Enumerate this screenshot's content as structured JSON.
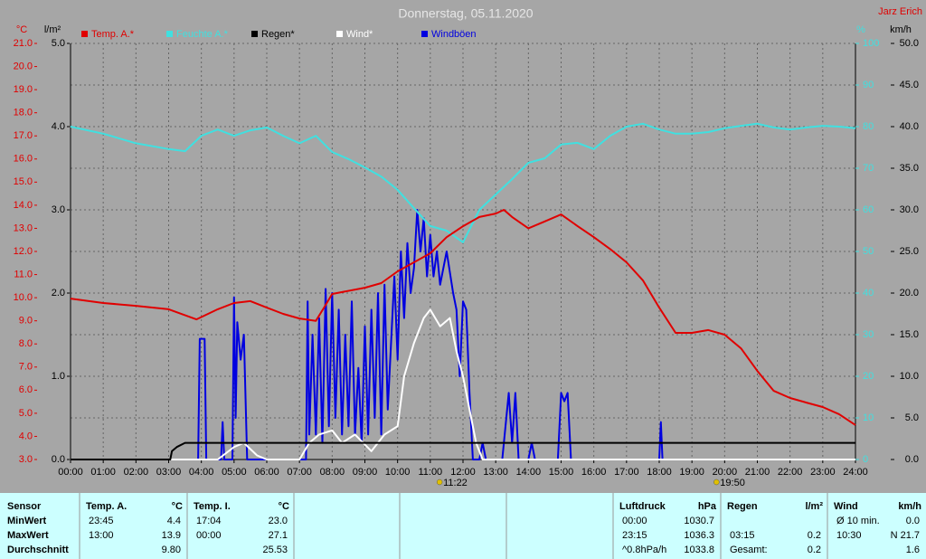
{
  "chart_data": {
    "type": "line",
    "title": "Donnerstag, 05.11.2020",
    "author": "Jarz Erich",
    "ylabel": "°C",
    "y2label": "l/m²",
    "y3label": "%",
    "y4label": "km/h",
    "xlim": [
      0,
      24
    ],
    "xticks": [
      {
        "value": 0,
        "label": "00:00"
      },
      {
        "value": 1,
        "label": "01:00"
      },
      {
        "value": 2,
        "label": "02:00"
      },
      {
        "value": 3,
        "label": "03:00"
      },
      {
        "value": 4,
        "label": "04:00"
      },
      {
        "value": 5,
        "label": "05:00"
      },
      {
        "value": 6,
        "label": "06:00"
      },
      {
        "value": 7,
        "label": "07:00"
      },
      {
        "value": 8,
        "label": "08:00"
      },
      {
        "value": 9,
        "label": "09:00"
      },
      {
        "value": 10,
        "label": "10:00"
      },
      {
        "value": 11,
        "label": "11:00"
      },
      {
        "value": 12,
        "label": "12:00"
      },
      {
        "value": 13,
        "label": "13:00"
      },
      {
        "value": 14,
        "label": "14:00"
      },
      {
        "value": 15,
        "label": "15:00"
      },
      {
        "value": 16,
        "label": "16:00"
      },
      {
        "value": 17,
        "label": "17:00"
      },
      {
        "value": 18,
        "label": "18:00"
      },
      {
        "value": 19,
        "label": "19:00"
      },
      {
        "value": 20,
        "label": "20:00"
      },
      {
        "value": 21,
        "label": "21:00"
      },
      {
        "value": 22,
        "label": "22:00"
      },
      {
        "value": 23,
        "label": "23:00"
      },
      {
        "value": 24,
        "label": "24:00"
      }
    ],
    "ylim": [
      3,
      21
    ],
    "yticks": [
      {
        "value": 3,
        "label": "3.0"
      },
      {
        "value": 4,
        "label": "4.0"
      },
      {
        "value": 5,
        "label": "5.0"
      },
      {
        "value": 6,
        "label": "6.0"
      },
      {
        "value": 7,
        "label": "7.0"
      },
      {
        "value": 8,
        "label": "8.0"
      },
      {
        "value": 9,
        "label": "9.0"
      },
      {
        "value": 10,
        "label": "10.0"
      },
      {
        "value": 11,
        "label": "11.0"
      },
      {
        "value": 12,
        "label": "12.0"
      },
      {
        "value": 13,
        "label": "13.0"
      },
      {
        "value": 14,
        "label": "14.0"
      },
      {
        "value": 15,
        "label": "15.0"
      },
      {
        "value": 16,
        "label": "16.0"
      },
      {
        "value": 17,
        "label": "17.0"
      },
      {
        "value": 18,
        "label": "18.0"
      },
      {
        "value": 19,
        "label": "19.0"
      },
      {
        "value": 20,
        "label": "20.0"
      },
      {
        "value": 21,
        "label": "21.0"
      }
    ],
    "y2lim": [
      0,
      5
    ],
    "y2ticks": [
      {
        "value": 0,
        "label": "0.0"
      },
      {
        "value": 1,
        "label": "1.0"
      },
      {
        "value": 2,
        "label": "2.0"
      },
      {
        "value": 3,
        "label": "3.0"
      },
      {
        "value": 4,
        "label": "4.0"
      },
      {
        "value": 5,
        "label": "5.0"
      }
    ],
    "y3lim": [
      0,
      100
    ],
    "y3ticks": [
      0,
      10,
      20,
      30,
      40,
      50,
      60,
      70,
      80,
      90,
      100
    ],
    "y4lim": [
      0,
      50
    ],
    "y4ticks": [
      {
        "value": 0,
        "label": "0.0"
      },
      {
        "value": 5,
        "label": "5.0"
      },
      {
        "value": 10,
        "label": "10.0"
      },
      {
        "value": 15,
        "label": "15.0"
      },
      {
        "value": 20,
        "label": "20.0"
      },
      {
        "value": 25,
        "label": "25.0"
      },
      {
        "value": 30,
        "label": "30.0"
      },
      {
        "value": 35,
        "label": "35.0"
      },
      {
        "value": 40,
        "label": "40.0"
      },
      {
        "value": 45,
        "label": "45.0"
      },
      {
        "value": 50,
        "label": "50.0"
      }
    ],
    "grid": true,
    "series": [
      {
        "name": "Temp. A.*",
        "color": "#e00000",
        "axis": "y",
        "x": [
          0,
          1,
          2,
          3,
          3.85,
          4.5,
          5,
          5.5,
          6,
          6.5,
          7,
          7.5,
          7.75,
          8,
          9,
          9.5,
          10,
          10.5,
          11,
          11.5,
          12,
          12.5,
          13,
          13.25,
          13.5,
          14,
          14.5,
          15,
          15.5,
          16,
          16.5,
          17,
          17.5,
          18,
          18.5,
          19,
          19.5,
          20,
          20.5,
          21,
          21.5,
          22,
          22.5,
          23,
          23.5,
          24
        ],
        "values": [
          9.96,
          9.77,
          9.65,
          9.5,
          9.06,
          9.5,
          9.77,
          9.85,
          9.57,
          9.3,
          9.1,
          9.0,
          9.57,
          10.16,
          10.43,
          10.63,
          11.14,
          11.53,
          11.92,
          12.62,
          13.09,
          13.49,
          13.64,
          13.8,
          13.49,
          13.0,
          13.3,
          13.6,
          13.1,
          12.62,
          12.1,
          11.53,
          10.75,
          9.57,
          8.48,
          8.48,
          8.6,
          8.4,
          7.81,
          6.83,
          5.97,
          5.66,
          5.46,
          5.27,
          4.96,
          4.49
        ]
      },
      {
        "name": "Feuchte A.*",
        "color": "#40e0e0",
        "axis": "y3",
        "x": [
          0,
          1,
          2,
          3,
          3.5,
          4,
          4.5,
          5,
          5.5,
          6,
          6.5,
          7,
          7.5,
          8,
          8.5,
          9,
          9.5,
          10,
          10.5,
          11,
          11.5,
          12,
          12.5,
          13,
          13.5,
          14,
          14.5,
          15,
          15.5,
          16,
          16.5,
          17,
          17.5,
          18,
          18.5,
          19,
          19.5,
          20,
          20.5,
          21,
          21.5,
          22,
          22.5,
          23,
          23.5,
          24
        ],
        "values": [
          80,
          78.3,
          76,
          74.6,
          74.1,
          77.8,
          79.3,
          77.8,
          79.1,
          79.8,
          77.8,
          76,
          77.8,
          73.9,
          72.2,
          70.2,
          68,
          64.8,
          60.4,
          56.1,
          55,
          52.2,
          60,
          63.7,
          67.4,
          71.3,
          72.4,
          75.7,
          76.1,
          74.6,
          77.8,
          80,
          80.7,
          79.3,
          78.3,
          78.3,
          78.7,
          79.6,
          80.2,
          80.7,
          79.8,
          79.3,
          79.8,
          80.2,
          80,
          79.6
        ]
      },
      {
        "name": "Regen*",
        "color": "#000000",
        "axis": "y2",
        "x": [
          0,
          3.05,
          3.1,
          3.25,
          3.5,
          24
        ],
        "values": [
          0,
          0,
          0.1,
          0.15,
          0.2,
          0.2
        ]
      },
      {
        "name": "Wind*",
        "color": "#ffffff",
        "axis": "y4",
        "x": [
          0,
          4.5,
          5,
          5.3,
          5.7,
          6,
          7,
          7.3,
          7.6,
          8,
          8.3,
          8.7,
          9.2,
          9.6,
          10,
          10.2,
          10.5,
          10.8,
          11,
          11.3,
          11.6,
          11.8,
          12,
          12.2,
          12.4,
          12.6,
          24
        ],
        "values": [
          0,
          0,
          1.5,
          2,
          0.5,
          0,
          0,
          2,
          3,
          3.5,
          2,
          3,
          1,
          3,
          4,
          10,
          14,
          17,
          18,
          16,
          17,
          13,
          10,
          6,
          2,
          0,
          0
        ]
      },
      {
        "name": "Windböen",
        "color": "#0000e0",
        "axis": "y4",
        "x": [
          0,
          3.9,
          3.95,
          4.1,
          4.15,
          4.6,
          4.65,
          4.7,
          4.95,
          5.0,
          5.05,
          5.1,
          5.2,
          5.3,
          5.4,
          7.2,
          7.25,
          7.3,
          7.4,
          7.5,
          7.6,
          7.7,
          7.8,
          7.9,
          8.0,
          8.1,
          8.2,
          8.3,
          8.4,
          8.5,
          8.6,
          8.7,
          8.8,
          8.9,
          9.0,
          9.1,
          9.2,
          9.3,
          9.4,
          9.5,
          9.6,
          9.7,
          9.9,
          10.0,
          10.1,
          10.2,
          10.3,
          10.4,
          10.5,
          10.6,
          10.7,
          10.8,
          10.9,
          11.0,
          11.1,
          11.2,
          11.3,
          11.5,
          11.7,
          11.8,
          11.9,
          12.0,
          12.1,
          12.2,
          12.3,
          12.5,
          12.6,
          12.7,
          13.2,
          13.3,
          13.4,
          13.5,
          13.6,
          13.7,
          14.0,
          14.1,
          14.2,
          14.9,
          15.0,
          15.1,
          15.2,
          15.3,
          18.0,
          18.05,
          18.1,
          24
        ],
        "values": [
          0,
          0,
          14.5,
          14.5,
          0,
          0,
          4.5,
          0,
          0,
          19.5,
          5,
          16.5,
          12,
          15,
          0,
          0,
          19,
          3,
          15,
          3,
          17,
          2,
          20.5,
          4,
          20,
          5,
          18,
          3,
          15,
          4,
          19,
          3,
          11,
          2,
          16,
          3,
          18,
          5,
          20,
          3,
          21,
          6,
          22,
          12,
          25,
          17,
          26,
          20,
          23,
          30,
          25,
          29,
          22,
          27,
          22,
          25,
          21,
          25,
          20,
          18,
          10,
          19,
          18,
          8,
          0,
          0,
          2,
          0,
          0,
          4,
          8,
          2,
          8,
          0,
          0,
          2,
          0,
          0,
          8,
          7,
          8,
          0,
          0,
          4.5,
          0,
          0
        ]
      }
    ],
    "annotations": [
      {
        "text": "11:22",
        "x": 11.367
      },
      {
        "text": "19:50",
        "x": 19.833
      }
    ]
  },
  "summary": {
    "labels": [
      "Sensor",
      "MinWert",
      "MaxWert",
      "Durchschnitt"
    ],
    "columns": [
      {
        "header": [
          "Temp. A.",
          "°C"
        ],
        "rows": [
          [
            "23:45",
            "4.4"
          ],
          [
            "13:00",
            "13.9"
          ],
          [
            null,
            "9.80"
          ]
        ]
      },
      {
        "header": [
          "Temp. I.",
          "°C"
        ],
        "rows": [
          [
            "17:04",
            "23.0"
          ],
          [
            "00:00",
            "27.1"
          ],
          [
            null,
            "25.53"
          ]
        ]
      },
      {
        "header": [
          "Luftdruck",
          "hPa"
        ],
        "rows": [
          [
            "00:00",
            "1030.7"
          ],
          [
            "23:15",
            "1036.3"
          ],
          [
            "^0.8hPa/h",
            "1033.8"
          ]
        ]
      },
      {
        "header": [
          "Regen",
          "l/m²"
        ],
        "rows": [
          [
            null,
            null
          ],
          [
            "03:15",
            "0.2"
          ],
          [
            "Gesamt:",
            "0.2"
          ]
        ]
      },
      {
        "header": [
          "Wind",
          "km/h"
        ],
        "rows": [
          [
            "Ø 10 min.",
            "0.0"
          ],
          [
            "10:30",
            "N 21.7"
          ],
          [
            null,
            "1.6"
          ]
        ]
      }
    ]
  }
}
